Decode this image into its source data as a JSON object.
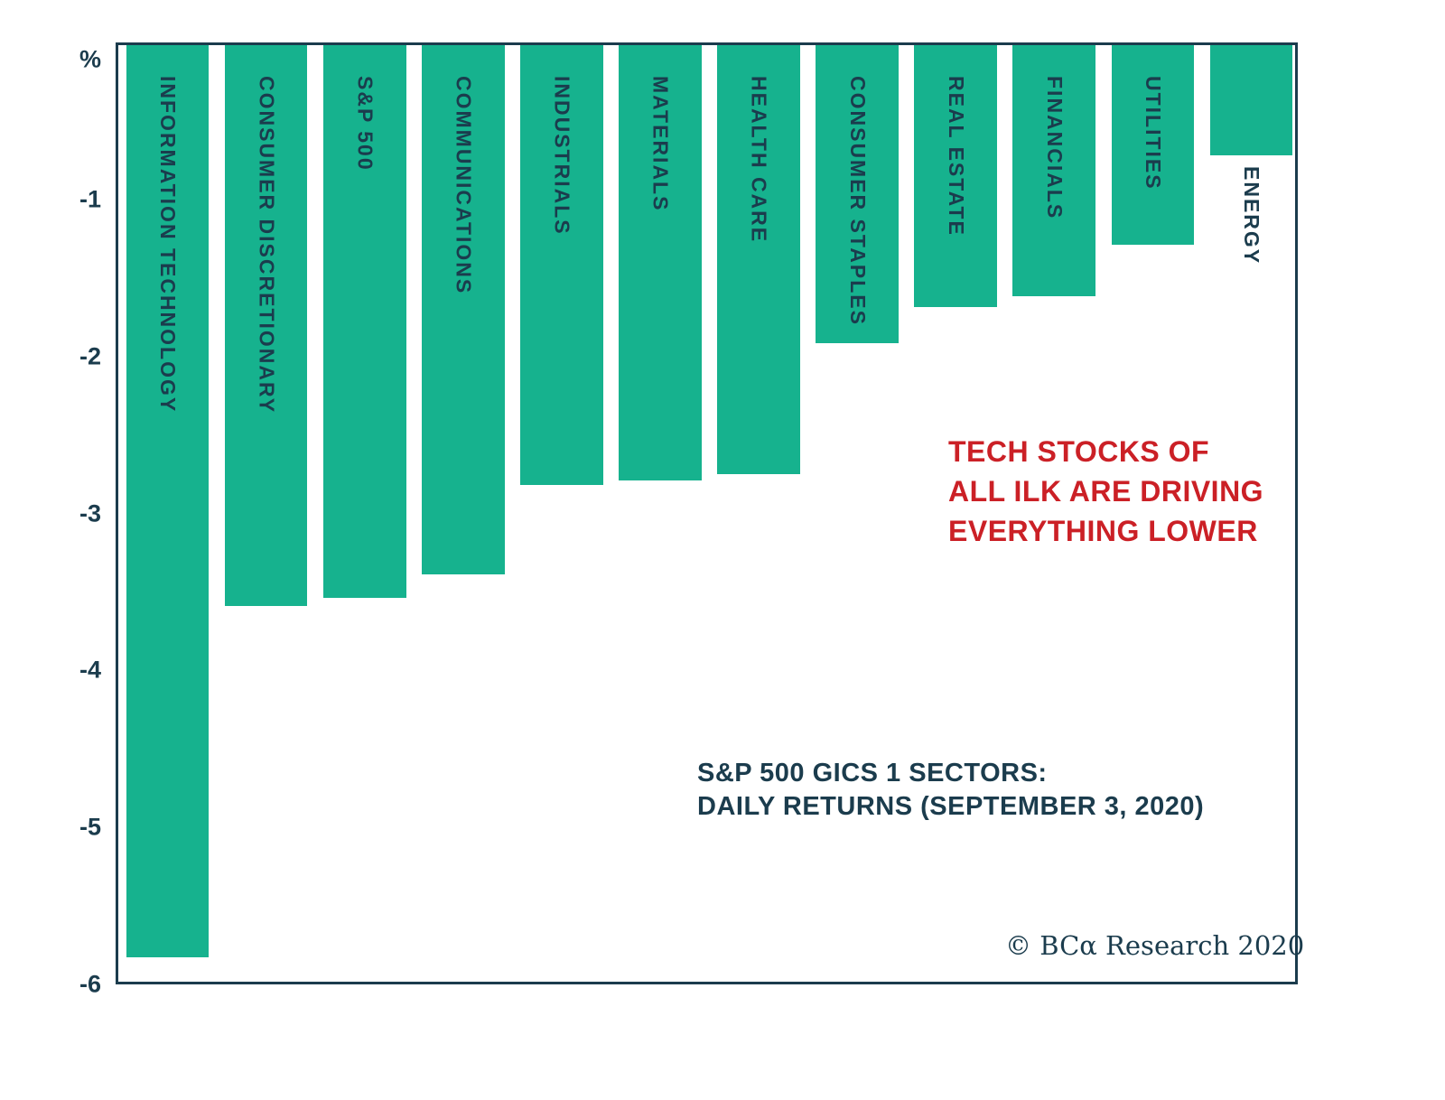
{
  "chart_data": {
    "type": "bar",
    "title": "S&P 500 GICS 1 SECTORS: DAILY RETURNS (SEPTEMBER 3, 2020)",
    "y_axis_unit_label": "%",
    "ylim": [
      -6,
      0
    ],
    "yticks": [
      "-1",
      "-2",
      "-3",
      "-4",
      "-5",
      "-6"
    ],
    "grid": false,
    "legend": false,
    "categories": [
      "INFORMATION TECHNOLOGY",
      "CONSUMER DISCRETIONARY",
      "S&P 500",
      "COMMUNICATIONS",
      "INDUSTRIALS",
      "MATERIALS",
      "HEALTH CARE",
      "CONSUMER STAPLES",
      "REAL ESTATE",
      "FINANCIALS",
      "UTILITIES",
      "ENERGY"
    ],
    "values": [
      -5.81,
      -3.57,
      -3.52,
      -3.37,
      -2.8,
      -2.77,
      -2.73,
      -1.9,
      -1.67,
      -1.6,
      -1.27,
      -0.7
    ],
    "bar_color": "#16b28e",
    "label_color": "#1b3c4d",
    "axis_color": "#1b3c4d"
  },
  "annotations": {
    "headline": {
      "color": "#cb2026",
      "lines": [
        "TECH STOCKS OF",
        "ALL ILK ARE DRIVING",
        "EVERYTHING LOWER"
      ]
    },
    "subtitle": {
      "color": "#1b3c4d",
      "lines": [
        "S&P 500 GICS 1 SECTORS:",
        "DAILY RETURNS (SEPTEMBER 3, 2020)"
      ]
    },
    "copyright": "© BCα Research 2020"
  }
}
